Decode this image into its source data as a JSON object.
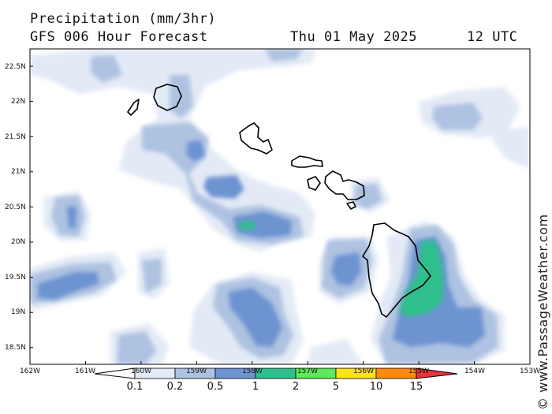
{
  "header": {
    "title": "Precipitation (mm/3hr)",
    "subtitle": "GFS 006 Hour Forecast",
    "date": "Thu 01 May 2025",
    "time": "12 UTC"
  },
  "watermark": "© www.PassageWeather.com",
  "map": {
    "lon_range": [
      -162,
      -153
    ],
    "lat_range": [
      18.25,
      22.75
    ],
    "lat_ticks": [
      "22.5N",
      "22N",
      "21.5N",
      "21N",
      "20.5N",
      "20N",
      "19.5N",
      "19N",
      "18.5N"
    ],
    "lon_ticks": [
      "162W",
      "161W",
      "160W",
      "159W",
      "158W",
      "157W",
      "156W",
      "155W",
      "154W",
      "153W"
    ],
    "ocean_color": "#ffffff",
    "coast_color": "#000000",
    "features": [
      "Kauai",
      "Niihau",
      "Oahu",
      "Molokai",
      "Lanai",
      "Maui",
      "Kahoolawe",
      "Hawaii"
    ]
  },
  "legend": {
    "levels": [
      "0.1",
      "0.2",
      "0.5",
      "1",
      "2",
      "5",
      "10",
      "15"
    ],
    "colors": [
      "#e3eaf6",
      "#aec2e1",
      "#6d93d1",
      "#2fbf8c",
      "#5ee85a",
      "#ffe31a",
      "#ff8a0f",
      "#e8323c"
    ]
  }
}
